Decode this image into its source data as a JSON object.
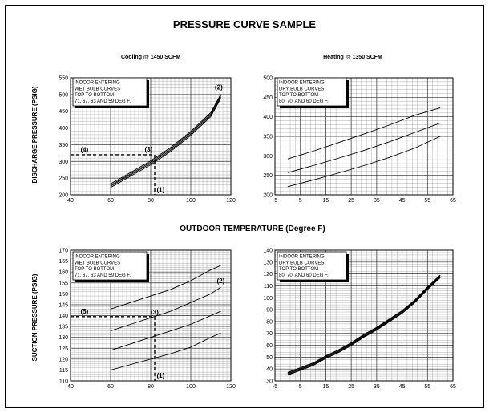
{
  "page": {
    "title": "PRESSURE CURVE SAMPLE",
    "shared_xlabel": "OUTDOOR TEMPERATURE (Degree F)"
  },
  "chart_data": [
    {
      "id": "discharge_cooling",
      "type": "line",
      "subtitle": "Cooling @ 1450 SCFM",
      "ylabel": "DISCHARGE PRESSURE (PSIG)",
      "xlim": [
        40,
        120
      ],
      "ylim": [
        200,
        550
      ],
      "xticks": [
        40,
        60,
        80,
        100,
        120
      ],
      "yticks": [
        200,
        250,
        300,
        350,
        400,
        450,
        500,
        550
      ],
      "minor_x": 2,
      "minor_y": 10,
      "legend_lines": [
        "INDOOR ENTERING",
        "WET BULB CURVES",
        "TOP TO BOTTOM",
        "71, 67, 63 AND 59 DEG F."
      ],
      "series": [
        {
          "x": [
            60,
            70,
            80,
            90,
            100,
            110,
            115
          ],
          "y": [
            233,
            267,
            302,
            342,
            390,
            446,
            501
          ]
        },
        {
          "x": [
            60,
            70,
            80,
            90,
            100,
            110,
            115
          ],
          "y": [
            229,
            263,
            298,
            338,
            386,
            442,
            497
          ]
        },
        {
          "x": [
            60,
            70,
            80,
            90,
            100,
            110,
            115
          ],
          "y": [
            226,
            260,
            294,
            334,
            382,
            438,
            493
          ]
        },
        {
          "x": [
            60,
            70,
            80,
            90,
            100,
            110,
            115
          ],
          "y": [
            222,
            256,
            290,
            330,
            378,
            434,
            489
          ]
        }
      ],
      "guides": [
        {
          "points": [
            [
              40,
              320
            ],
            [
              82,
              320
            ]
          ]
        },
        {
          "points": [
            [
              82,
              320
            ],
            [
              82,
              200
            ]
          ]
        }
      ],
      "annotations": [
        {
          "text": "(4)",
          "x": 45,
          "y": 328
        },
        {
          "text": "(3)",
          "x": 77,
          "y": 330
        },
        {
          "text": "(1)",
          "x": 83,
          "y": 208
        },
        {
          "text": "(2)",
          "x": 112,
          "y": 515
        }
      ]
    },
    {
      "id": "discharge_heating",
      "type": "line",
      "subtitle": "Heating @ 1350 SCFM",
      "xlim": [
        -5,
        65
      ],
      "ylim": [
        200,
        500
      ],
      "xticks": [
        -5,
        5,
        15,
        25,
        35,
        45,
        55,
        65
      ],
      "yticks": [
        200,
        250,
        300,
        350,
        400,
        450,
        500
      ],
      "minor_x": 2,
      "minor_y": 10,
      "legend_lines": [
        "INDOOR ENTERING",
        "DRY BULB CURVES",
        "TOP TO BOTTOM",
        "80, 70, AND 60 DEG F."
      ],
      "series": [
        {
          "x": [
            0,
            10,
            20,
            30,
            40,
            50,
            60
          ],
          "y": [
            292,
            312,
            334,
            356,
            379,
            404,
            423
          ]
        },
        {
          "x": [
            0,
            10,
            20,
            30,
            40,
            50,
            60
          ],
          "y": [
            257,
            275,
            294,
            314,
            336,
            360,
            384
          ]
        },
        {
          "x": [
            0,
            10,
            20,
            30,
            40,
            50,
            60
          ],
          "y": [
            221,
            238,
            256,
            275,
            296,
            320,
            350
          ]
        }
      ]
    },
    {
      "id": "suction_cooling",
      "type": "line",
      "ylabel": "SUCTION PRESSURE (PSIG)",
      "xlim": [
        40,
        120
      ],
      "ylim": [
        110,
        170
      ],
      "xticks": [
        40,
        60,
        80,
        100,
        120
      ],
      "yticks": [
        110,
        115,
        120,
        125,
        130,
        135,
        140,
        145,
        150,
        155,
        160,
        165,
        170
      ],
      "minor_x": 2,
      "minor_y": 1,
      "legend_lines": [
        "INDOOR ENTERING",
        "WET BULB CURVES",
        "TOP TO BOTTOM",
        "71, 67, 63 AND 59 DEG F."
      ],
      "series": [
        {
          "x": [
            60,
            70,
            80,
            90,
            100,
            110,
            115
          ],
          "y": [
            143,
            146,
            149,
            152,
            156,
            161,
            163
          ]
        },
        {
          "x": [
            60,
            70,
            80,
            90,
            100,
            110,
            115
          ],
          "y": [
            133,
            136,
            139,
            142,
            146,
            150,
            153
          ]
        },
        {
          "x": [
            60,
            70,
            80,
            90,
            100,
            110,
            115
          ],
          "y": [
            124,
            127,
            130,
            133,
            136,
            140,
            142
          ]
        },
        {
          "x": [
            60,
            70,
            80,
            90,
            100,
            110,
            115
          ],
          "y": [
            115,
            117.5,
            120,
            122.5,
            125.5,
            130,
            132
          ]
        }
      ],
      "guides": [
        {
          "points": [
            [
              40,
              139.5
            ],
            [
              82,
              139.5
            ]
          ]
        },
        {
          "points": [
            [
              82,
              139.5
            ],
            [
              82,
              110
            ]
          ]
        }
      ],
      "annotations": [
        {
          "text": "(5)",
          "x": 45,
          "y": 141
        },
        {
          "text": "(3)",
          "x": 80,
          "y": 140.5
        },
        {
          "text": "(1)",
          "x": 83,
          "y": 111.5
        },
        {
          "text": "(2)",
          "x": 113,
          "y": 155
        }
      ]
    },
    {
      "id": "suction_heating",
      "type": "line",
      "xlim": [
        -5,
        65
      ],
      "ylim": [
        30,
        140
      ],
      "xticks": [
        -5,
        5,
        15,
        25,
        35,
        45,
        55,
        65
      ],
      "yticks": [
        30,
        40,
        50,
        60,
        70,
        80,
        90,
        100,
        110,
        120,
        130,
        140
      ],
      "minor_x": 2,
      "minor_y": 2,
      "legend_lines": [
        "INDOOR ENTERING",
        "DRY BULB CURVES",
        "TOP TO BOTTOM",
        "80, 70, AND 60 DEG F."
      ],
      "series": [
        {
          "x": [
            0,
            5,
            10,
            15,
            20,
            25,
            30,
            35,
            40,
            45,
            50,
            55,
            60
          ],
          "y": [
            37,
            41,
            45,
            51,
            56,
            62,
            69,
            75,
            82,
            89,
            98,
            109,
            119
          ],
          "thick": true
        },
        {
          "x": [
            0,
            5,
            10,
            15,
            20,
            25,
            30,
            35,
            40,
            45,
            50,
            55,
            60
          ],
          "y": [
            36,
            40,
            44,
            50,
            55,
            61,
            68,
            74,
            81,
            88,
            97,
            108,
            118
          ],
          "thick": true
        },
        {
          "x": [
            0,
            5,
            10,
            15,
            20,
            25,
            30,
            35,
            40,
            45,
            50,
            55,
            60
          ],
          "y": [
            35,
            39,
            43,
            49,
            54,
            60,
            67,
            73,
            80,
            87,
            96,
            107,
            117
          ],
          "thick": true
        }
      ]
    }
  ]
}
